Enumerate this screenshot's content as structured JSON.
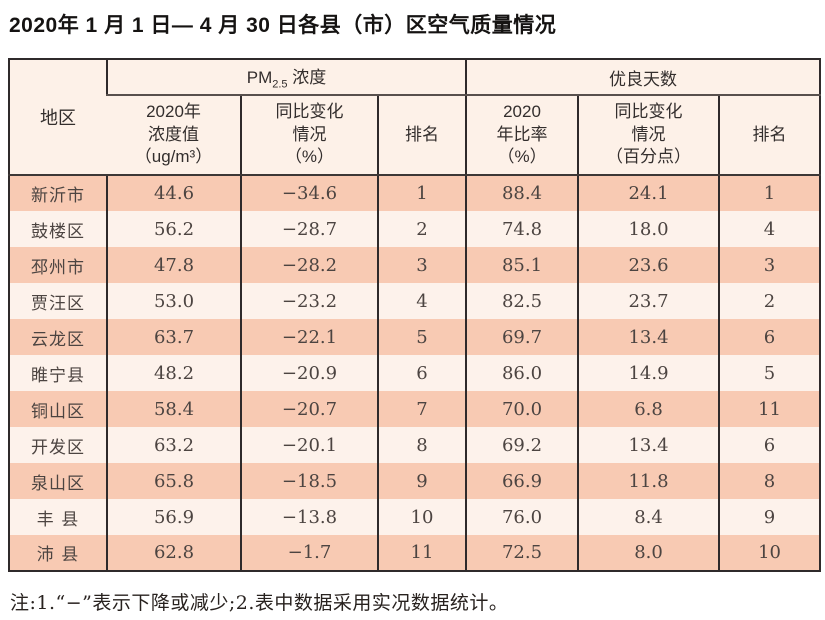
{
  "title": "2020年 1 月 1 日— 4 月 30 日各县（市）区空气质量情况",
  "table": {
    "region_header": "地区",
    "pm_group": {
      "prefix": "PM",
      "sub": "2.5",
      "suffix": " 浓度"
    },
    "good_group": {
      "label": "优良天数"
    },
    "sub_headers": [
      "2020年\n浓度值\n（ug/m³）",
      "同比变化\n情况\n（%）",
      "排名",
      "2020\n年比率\n（%）",
      "同比变化\n情况\n（百分点）",
      "排名"
    ],
    "column_keys": [
      "region",
      "pm-value",
      "pm-change",
      "pm-rank",
      "good-ratio",
      "good-change",
      "good-rank"
    ],
    "rows": [
      [
        "新沂市",
        "44.6",
        "−34.6",
        "1",
        "88.4",
        "24.1",
        "1"
      ],
      [
        "鼓楼区",
        "56.2",
        "−28.7",
        "2",
        "74.8",
        "18.0",
        "4"
      ],
      [
        "邳州市",
        "47.8",
        "−28.2",
        "3",
        "85.1",
        "23.6",
        "3"
      ],
      [
        "贾汪区",
        "53.0",
        "−23.2",
        "4",
        "82.5",
        "23.7",
        "2"
      ],
      [
        "云龙区",
        "63.7",
        "−22.1",
        "5",
        "69.7",
        "13.4",
        "6"
      ],
      [
        "睢宁县",
        "48.2",
        "−20.9",
        "6",
        "86.0",
        "14.9",
        "5"
      ],
      [
        "铜山区",
        "58.4",
        "−20.7",
        "7",
        "70.0",
        "6.8",
        "11"
      ],
      [
        "开发区",
        "63.2",
        "−20.1",
        "8",
        "69.2",
        "13.4",
        "6"
      ],
      [
        "泉山区",
        "65.8",
        "−18.5",
        "9",
        "66.9",
        "11.8",
        "8"
      ],
      [
        "丰 县",
        "56.9",
        "−13.8",
        "10",
        "76.0",
        "8.4",
        "9"
      ],
      [
        "沛 县",
        "62.8",
        "−1.7",
        "11",
        "72.5",
        "8.0",
        "10"
      ]
    ]
  },
  "note": "注:1.“−”表示下降或减少;2.表中数据采用实况数据统计。",
  "colors": {
    "band_row": "#f8cab3",
    "alt_row": "#fdf2eb",
    "header_bg": "#fdf1e8",
    "outer_border": "#2f2a2b",
    "header_underline": "#58504d",
    "text": "#4c4441"
  }
}
